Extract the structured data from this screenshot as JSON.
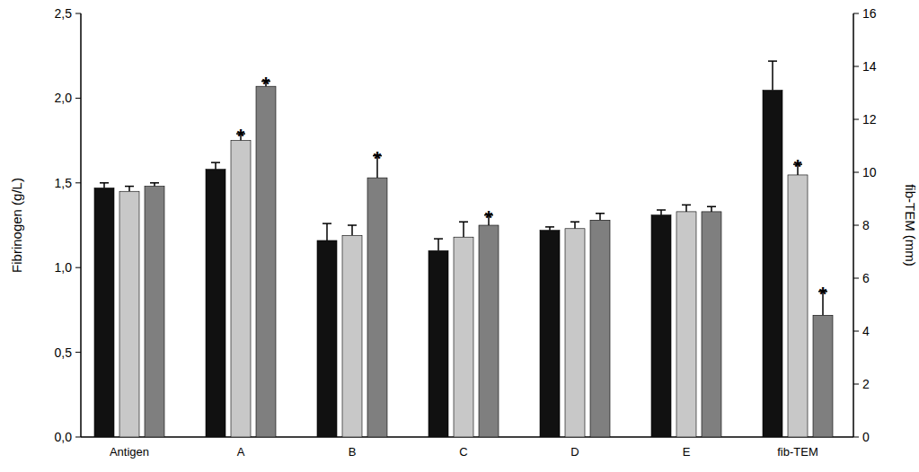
{
  "chart_data": {
    "type": "bar",
    "y_label": "Fibrinogen (g/L)",
    "y2_label": "fib-TEM (mm)",
    "categories": [
      "Antigen",
      "A",
      "B",
      "C",
      "D",
      "E",
      "fib-TEM"
    ],
    "ylim": [
      0,
      2.5
    ],
    "yticks": [
      {
        "value": 0,
        "label": "0,0"
      },
      {
        "value": 0.5,
        "label": "0,5"
      },
      {
        "value": 1,
        "label": "1,0"
      },
      {
        "value": 1.5,
        "label": "1,5"
      },
      {
        "value": 2,
        "label": "2,0"
      },
      {
        "value": 2.5,
        "label": "2,5"
      }
    ],
    "y2lim": [
      0,
      16
    ],
    "y2ticks": [
      0,
      2,
      4,
      6,
      8,
      10,
      12,
      14,
      16
    ],
    "grid": false,
    "series": [
      {
        "color": "#111111",
        "values": [
          1.47,
          1.58,
          1.16,
          1.1,
          1.22,
          1.31,
          null
        ],
        "errors": [
          0.03,
          0.04,
          0.1,
          0.07,
          0.02,
          0.03,
          null
        ]
      },
      {
        "color": "#c8c8c8",
        "values": [
          1.45,
          1.75,
          1.19,
          1.18,
          1.23,
          1.33,
          null
        ],
        "errors": [
          0.03,
          0.04,
          0.06,
          0.09,
          0.04,
          0.04,
          null
        ]
      },
      {
        "color": "#7f7f7f",
        "values": [
          1.48,
          2.07,
          1.53,
          1.25,
          1.28,
          1.33,
          null
        ],
        "errors": [
          0.02,
          0.03,
          0.13,
          0.06,
          0.04,
          0.03,
          null
        ]
      },
      {
        "color": "#111111",
        "axis": "y2",
        "values": [
          null,
          null,
          null,
          null,
          null,
          null,
          13.1
        ],
        "errors": [
          null,
          null,
          null,
          null,
          null,
          null,
          1.1
        ]
      },
      {
        "color": "#c8c8c8",
        "axis": "y2",
        "values": [
          null,
          null,
          null,
          null,
          null,
          null,
          9.9
        ],
        "errors": [
          null,
          null,
          null,
          null,
          null,
          null,
          0.4
        ]
      },
      {
        "color": "#7f7f7f",
        "axis": "y2",
        "values": [
          null,
          null,
          null,
          null,
          null,
          null,
          4.6
        ],
        "errors": [
          null,
          null,
          null,
          null,
          null,
          null,
          0.9
        ]
      }
    ],
    "annotations": [
      {
        "text": "*",
        "category": 1,
        "series": 1
      },
      {
        "text": "*",
        "category": 1,
        "series": 2
      },
      {
        "text": "*",
        "category": 2,
        "series": 2
      },
      {
        "text": "*",
        "category": 3,
        "series": 2
      },
      {
        "text": "*",
        "category": 6,
        "series": 4
      },
      {
        "text": "*",
        "category": 6,
        "series": 5
      }
    ]
  }
}
